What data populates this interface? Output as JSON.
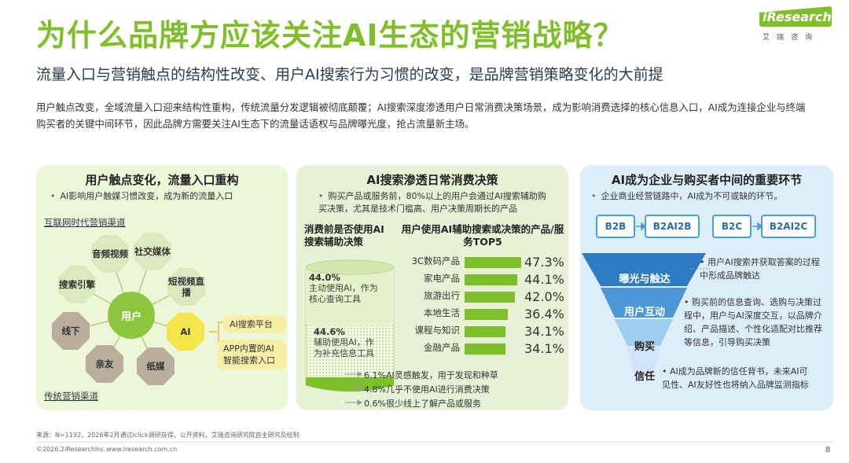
{
  "header": {
    "title": "为什么品牌方应该关注AI生态的营销战略？",
    "subtitle": "流量入口与营销触点的结构性改变、用户AI搜索行为习惯的改变，是品牌营销策略变化的大前提",
    "intro": "用户触点改变，全域流量入口迎来结构性重构，传统流量分发逻辑被彻底颠覆；AI搜索深度渗透用户日常消费决策场景，成为影响消费选择的核心信息入口，AI成为连接企业与终端购买者的关键中间环节，因此品牌方需要关注AI生态下的流量话语权与品牌曝光度，抢占流量新主场。"
  },
  "logo": {
    "name": "iResearch",
    "sub": "艾瑞咨询"
  },
  "panel1": {
    "title": "用户触点变化，流量入口重构",
    "bullet": "AI影响用户触媒习惯改变，成为新的流量入口",
    "internet_label": "互联网时代营销渠道",
    "traditional_label": "传统营销渠道",
    "center": "用户",
    "nodes": {
      "audio_video": "音频视频",
      "social": "社交媒体",
      "search": "搜索引擎",
      "short_video": "短视频直播",
      "offline": "线下",
      "ai": "AI",
      "friends": "亲友",
      "paper": "纸媒"
    },
    "ai_items": [
      "AI搜索平台",
      "APP内置的AI智能搜索入口"
    ]
  },
  "panel2": {
    "title": "AI搜索渗透日常消费决策",
    "bullet": "购买产品或服务前，80%以上的用户会通过AI搜索辅助购买决策，尤其是技术门槛高、用户决策周期长的产品",
    "left_heading": "消费前是否使用AI搜索辅助决策",
    "right_heading": "用户使用AI辅助搜索或决策的产品/服务TOP5",
    "usage": [
      {
        "pct": "44.0%",
        "desc": "主动使用AI，作为核心查询工具"
      },
      {
        "pct": "44.6%",
        "desc": "辅助使用AI，作为补充信息工具"
      }
    ],
    "others": [
      "6.1%AI灵感触发，用于发现和种草",
      "4.8%几乎不使用AI进行消费决策",
      "0.6%很少线上了解产品或服务"
    ]
  },
  "chart_data": {
    "type": "bar",
    "title": "用户使用AI辅助搜索或决策的产品/服务TOP5",
    "categories": [
      "3C数码产品",
      "家电产品",
      "旅游出行",
      "本地生活",
      "课程与知识",
      "金融产品"
    ],
    "values": [
      47.3,
      44.1,
      42.0,
      36.4,
      34.1,
      34.1
    ],
    "value_labels": [
      "47.3%",
      "44.1%",
      "42.0%",
      "36.4%",
      "34.1%",
      "34.1%"
    ],
    "unit": "%",
    "color": "#7fbf2a"
  },
  "panel3": {
    "title": "AI成为企业与购买者中间的重要环节",
    "bullet": "企业商业经营链路中，AI成为不可或缺的环节。",
    "chain": [
      "B2B",
      "B2AI2B",
      "B2C",
      "B2AI2C"
    ],
    "funnel": [
      {
        "label": "曝光与触达",
        "color": "#2e7bc4",
        "text_color": "#ffffff"
      },
      {
        "label": "用户互动",
        "color": "#4c98d6",
        "text_color": "#ffffff"
      },
      {
        "label": "购买",
        "color": "#9fcbef",
        "text_color": "#222222"
      },
      {
        "label": "信任",
        "color": "#cfe4f6",
        "text_color": "#222222"
      }
    ],
    "descriptions": [
      "用户AI搜索并获取答案的过程中形成品牌触达",
      "购买前的信息查询、选购与决策过程中，用户与AI深度交互，以品牌介绍、产品描述、个性化适配对比推荐等信息，引导购买决策",
      "AI成为品牌新的信任背书，未来AI可见性、AI友好性也将纳入品牌监测指标"
    ]
  },
  "footer": {
    "source": "来源：N=1192，2026年2月通过iclick调研获得，公开资料，艾瑞咨询研究院自主研究及绘制",
    "copyright": "©2026.2iResearchInc.www.iresearch.com.cn",
    "page": "8"
  }
}
